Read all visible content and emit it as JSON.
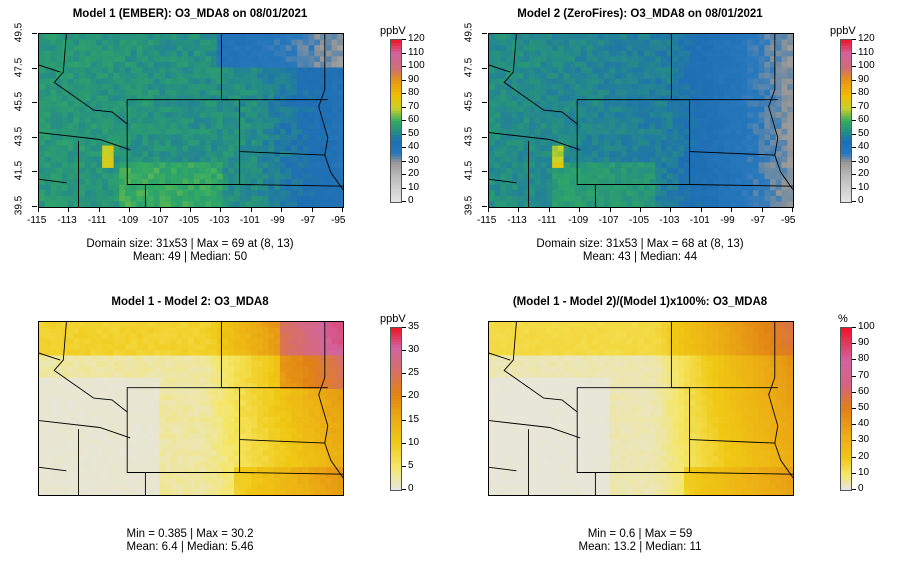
{
  "panels": [
    {
      "title": "Model 1 (EMBER): O3_MDA8 on 08/01/2021",
      "stats_line1": "Domain size: 31x53 | Max = 69 at (8, 13)",
      "stats_line2": "Mean: 49 |  Median: 50",
      "show_axes": true,
      "unit": "ppbV",
      "scale": "ozone",
      "base_value": 50,
      "legend_ticks": [
        "0",
        "10",
        "20",
        "30",
        "40",
        "50",
        "60",
        "70",
        "80",
        "90",
        "100",
        "110",
        "120"
      ],
      "legend_max": 120
    },
    {
      "title": "Model 2 (ZeroFires): O3_MDA8 on 08/01/2021",
      "stats_line1": "Domain size: 31x53 | Max = 68 at (8, 13)",
      "stats_line2": "Mean: 43 |  Median: 44",
      "show_axes": true,
      "unit": "ppbV",
      "scale": "ozone",
      "base_value": 43,
      "legend_ticks": [
        "0",
        "10",
        "20",
        "30",
        "40",
        "50",
        "60",
        "70",
        "80",
        "90",
        "100",
        "110",
        "120"
      ],
      "legend_max": 120
    },
    {
      "title": "Model 1 - Model 2: O3_MDA8",
      "stats_line1": "Min = 0.385 | Max = 30.2",
      "stats_line2": "Mean: 6.4 |  Median: 5.46",
      "show_axes": false,
      "unit": "ppbV",
      "scale": "diff",
      "base_value": 6.4,
      "legend_ticks": [
        "0",
        "5",
        "10",
        "15",
        "20",
        "25",
        "30",
        "35"
      ],
      "legend_max": 35
    },
    {
      "title": "(Model 1 - Model 2)/(Model 1)x100%: O3_MDA8",
      "stats_line1": "Min = 0.6 | Max = 59",
      "stats_line2": "Mean: 13.2 |  Median: 11",
      "show_axes": false,
      "unit": "%",
      "scale": "pct",
      "base_value": 13.2,
      "legend_ticks": [
        "0",
        "10",
        "20",
        "30",
        "40",
        "50",
        "60",
        "70",
        "80",
        "90",
        "100"
      ],
      "legend_max": 100
    }
  ],
  "axes": {
    "x_ticks": [
      "-115",
      "-113",
      "-111",
      "-109",
      "-107",
      "-105",
      "-103",
      "-101",
      "-99",
      "-97",
      "-95"
    ],
    "y_ticks": [
      "39.5",
      "41.5",
      "43.5",
      "45.5",
      "47.5",
      "49.5"
    ]
  },
  "chart_data": [
    {
      "type": "heatmap",
      "title": "Model 1 (EMBER): O3_MDA8 on 08/01/2021",
      "variable": "O3_MDA8",
      "unit": "ppbV",
      "grid": "31x53",
      "max": 69,
      "max_at": "(8, 13)",
      "mean": 49,
      "median": 50,
      "x_range": [
        -115,
        -95
      ],
      "y_range": [
        39.5,
        49.5
      ],
      "color_range": [
        0,
        120
      ]
    },
    {
      "type": "heatmap",
      "title": "Model 2 (ZeroFires): O3_MDA8 on 08/01/2021",
      "variable": "O3_MDA8",
      "unit": "ppbV",
      "grid": "31x53",
      "max": 68,
      "max_at": "(8, 13)",
      "mean": 43,
      "median": 44,
      "x_range": [
        -115,
        -95
      ],
      "y_range": [
        39.5,
        49.5
      ],
      "color_range": [
        0,
        120
      ]
    },
    {
      "type": "heatmap",
      "title": "Model 1 - Model 2: O3_MDA8",
      "unit": "ppbV",
      "min": 0.385,
      "max": 30.2,
      "mean": 6.4,
      "median": 5.46,
      "color_range": [
        0,
        35
      ]
    },
    {
      "type": "heatmap",
      "title": "(Model 1 - Model 2)/(Model 1)x100%: O3_MDA8",
      "unit": "%",
      "min": 0.6,
      "max": 59,
      "mean": 13.2,
      "median": 11,
      "color_range": [
        0,
        100
      ]
    }
  ]
}
